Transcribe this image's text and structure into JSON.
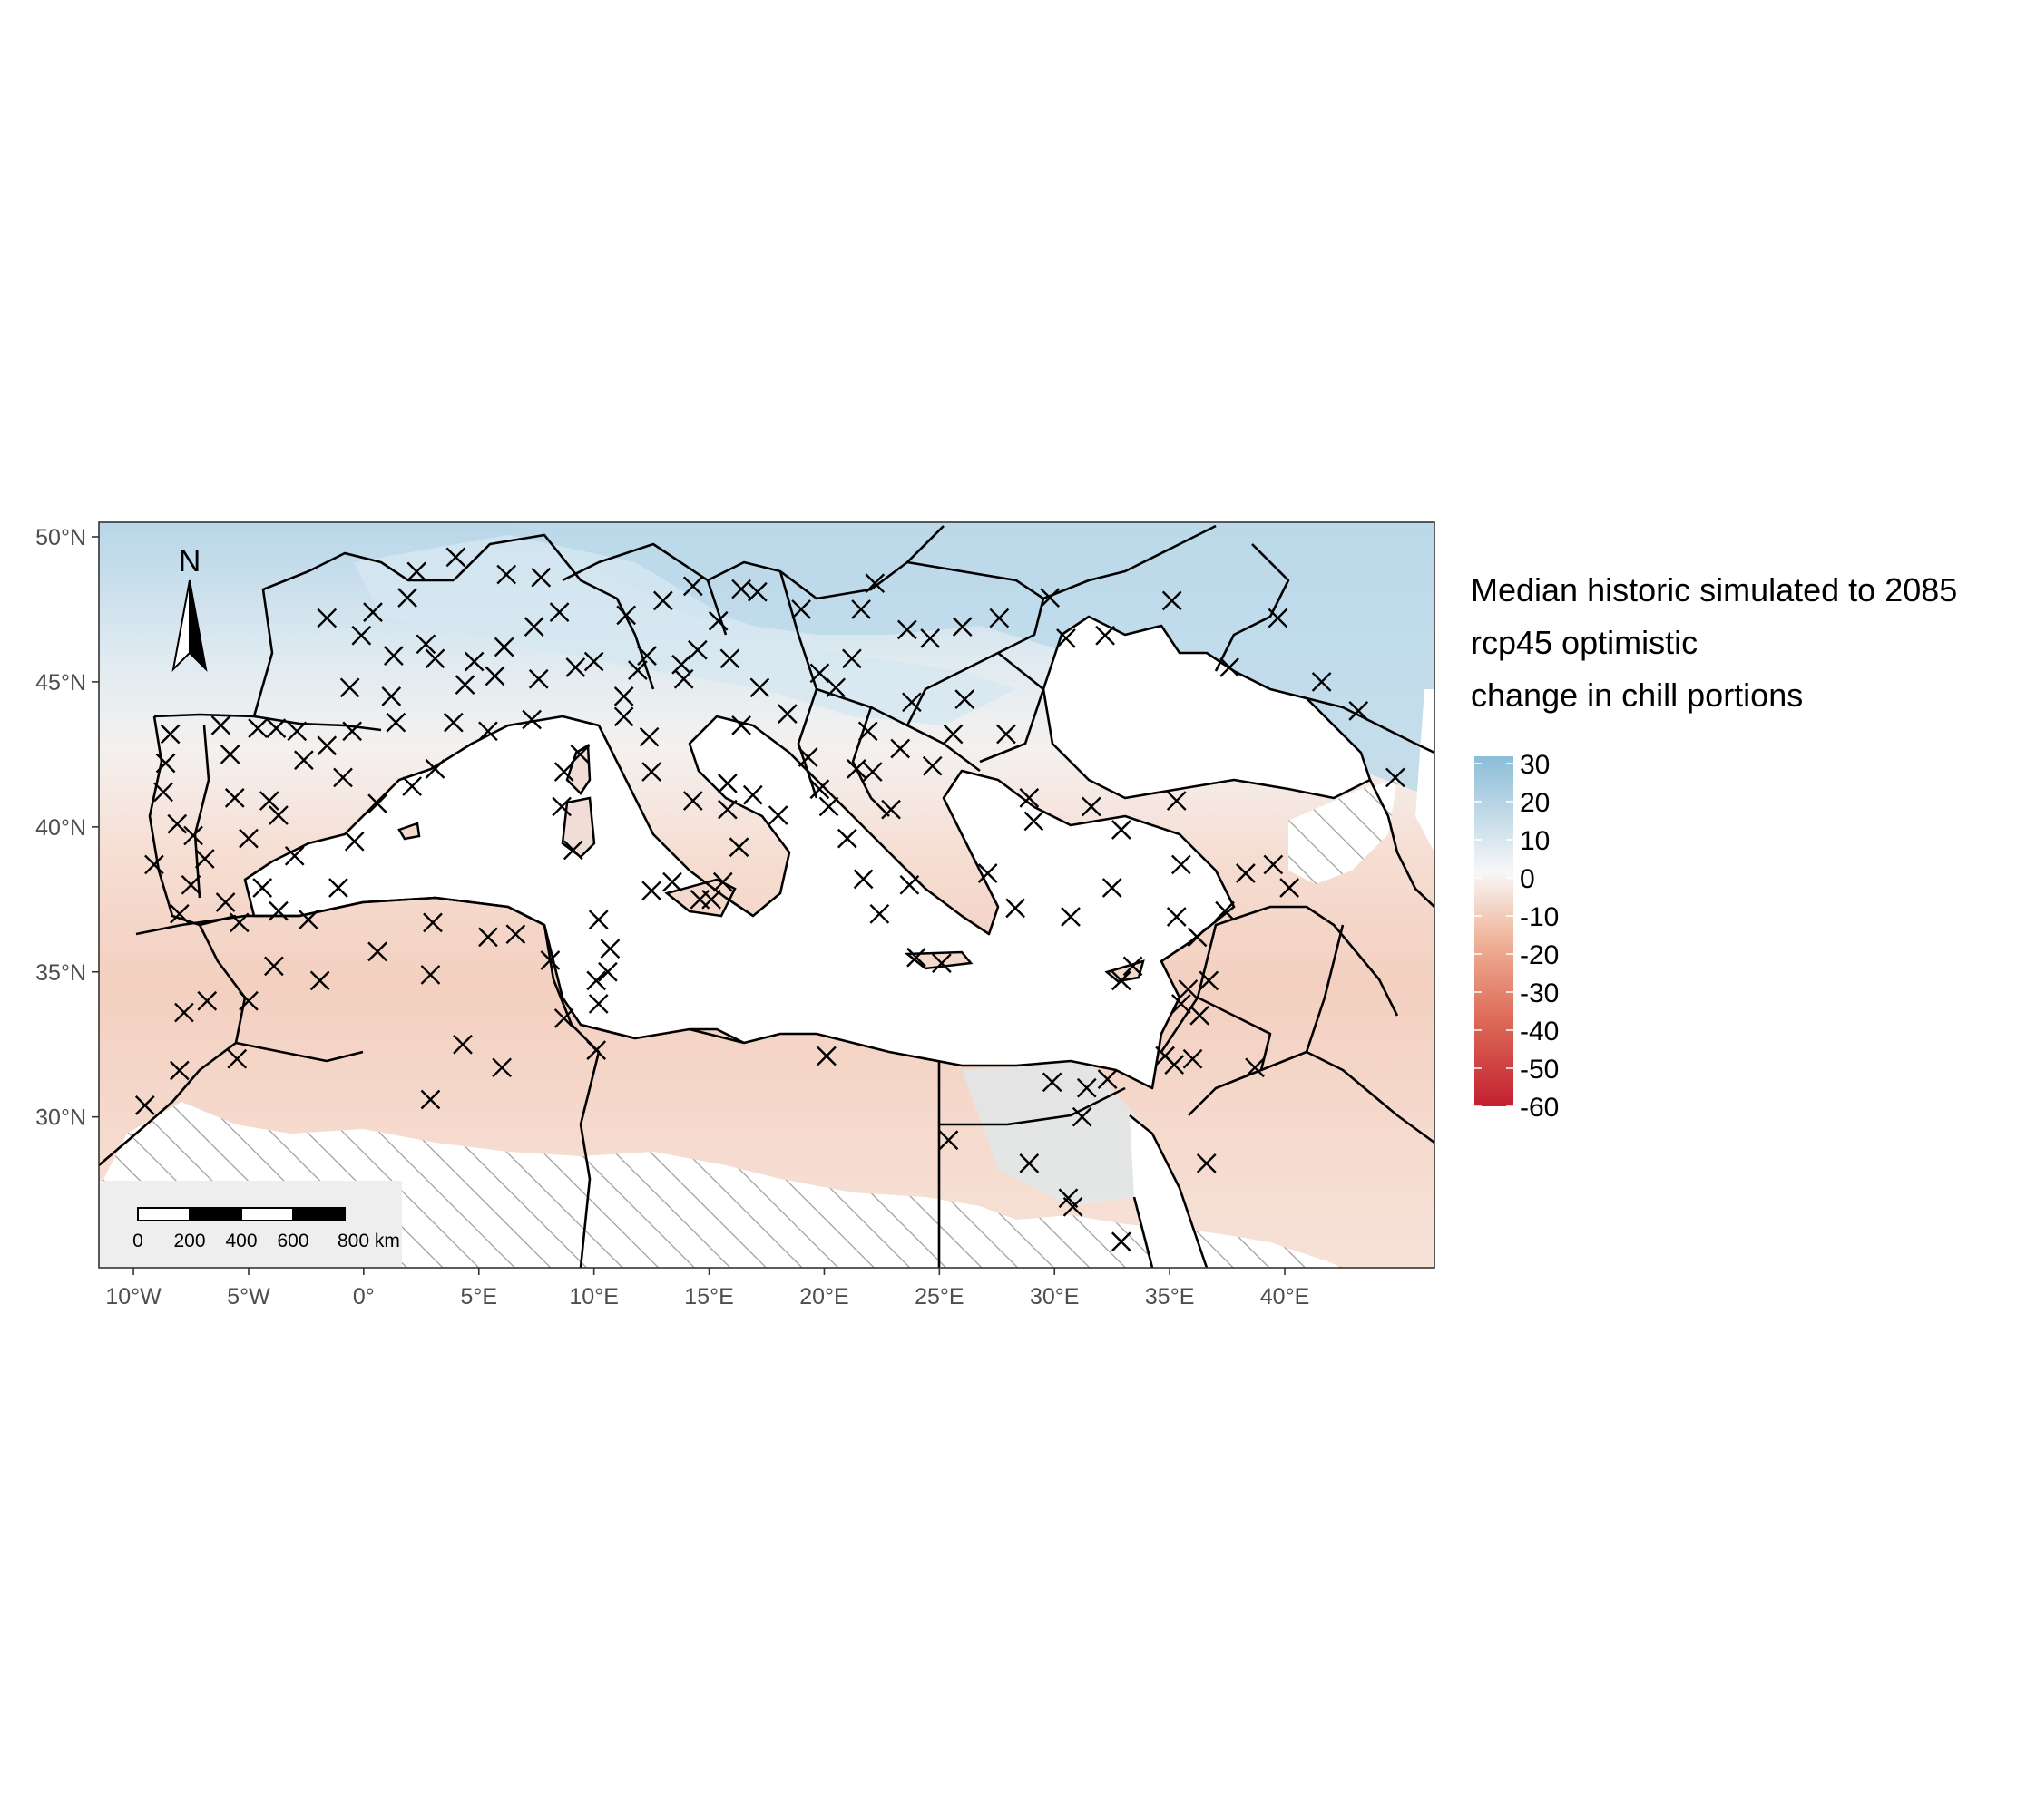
{
  "chart_data": {
    "type": "heatmap",
    "kind": "choropleth map with station markers",
    "title": "",
    "legend": {
      "title_lines": [
        "Median historic simulated to 2085",
        "rcp45 optimistic",
        "change in chill portions"
      ],
      "ticks": [
        "30",
        "20",
        "10",
        "0",
        "-10",
        "-20",
        "-30",
        "-40",
        "-50",
        "-60"
      ],
      "range": [
        -60,
        30
      ],
      "colors": {
        "max": "#8cbdd8",
        "zero": "#f7f7f7",
        "min": "#c32030"
      },
      "placement": "right"
    },
    "x_ticks": [
      {
        "lon": -10,
        "label": "10°W"
      },
      {
        "lon": -5,
        "label": "5°W"
      },
      {
        "lon": 0,
        "label": "0°"
      },
      {
        "lon": 5,
        "label": "5°E"
      },
      {
        "lon": 10,
        "label": "10°E"
      },
      {
        "lon": 15,
        "label": "15°E"
      },
      {
        "lon": 20,
        "label": "20°E"
      },
      {
        "lon": 25,
        "label": "25°E"
      },
      {
        "lon": 30,
        "label": "30°E"
      },
      {
        "lon": 35,
        "label": "35°E"
      },
      {
        "lon": 40,
        "label": "40°E"
      }
    ],
    "y_ticks": [
      {
        "lat": 50,
        "label": "50°N"
      },
      {
        "lat": 45,
        "label": "45°N"
      },
      {
        "lat": 40,
        "label": "40°N"
      },
      {
        "lat": 35,
        "label": "35°N"
      },
      {
        "lat": 30,
        "label": "30°N"
      }
    ],
    "xlim": [
      -11.5,
      46.5
    ],
    "ylim": [
      24.8,
      50.5
    ],
    "grid": false,
    "north_arrow": {
      "label": "N",
      "placement": "top-left"
    },
    "scale_bar": {
      "labels": [
        "0",
        "200",
        "400",
        "600",
        "800 km"
      ],
      "placement": "bottom-left"
    },
    "no_data_pattern": "hatched",
    "stations": [
      [
        -8.4,
        43.2
      ],
      [
        -8.6,
        42.2
      ],
      [
        -8.7,
        41.2
      ],
      [
        -8.1,
        40.1
      ],
      [
        -9.1,
        38.7
      ],
      [
        -8.0,
        37.0
      ],
      [
        -7.5,
        38.0
      ],
      [
        -6.2,
        43.5
      ],
      [
        -5.8,
        42.5
      ],
      [
        -4.6,
        43.4
      ],
      [
        -3.8,
        43.4
      ],
      [
        -2.9,
        43.3
      ],
      [
        -1.6,
        42.8
      ],
      [
        -0.9,
        41.7
      ],
      [
        -3.7,
        40.4
      ],
      [
        -4.1,
        40.9
      ],
      [
        -5.6,
        41.0
      ],
      [
        -3.0,
        39.0
      ],
      [
        -4.4,
        37.9
      ],
      [
        -6.0,
        37.4
      ],
      [
        -5.4,
        36.7
      ],
      [
        -3.7,
        37.1
      ],
      [
        -2.4,
        36.8
      ],
      [
        -1.1,
        37.9
      ],
      [
        -0.4,
        39.5
      ],
      [
        0.6,
        40.8
      ],
      [
        2.1,
        41.4
      ],
      [
        3.1,
        42.0
      ],
      [
        -6.9,
        38.9
      ],
      [
        -5.0,
        39.6
      ],
      [
        -2.6,
        42.3
      ],
      [
        -7.4,
        39.7
      ],
      [
        -7.8,
        33.6
      ],
      [
        -6.8,
        34.0
      ],
      [
        -5.0,
        34.0
      ],
      [
        -3.9,
        35.2
      ],
      [
        -1.9,
        34.7
      ],
      [
        -8.0,
        31.6
      ],
      [
        -5.5,
        32.0
      ],
      [
        -9.5,
        30.4
      ],
      [
        0.6,
        35.7
      ],
      [
        3.0,
        36.7
      ],
      [
        5.4,
        36.2
      ],
      [
        6.6,
        36.3
      ],
      [
        8.1,
        35.4
      ],
      [
        2.9,
        34.9
      ],
      [
        4.3,
        32.5
      ],
      [
        6.0,
        31.7
      ],
      [
        2.9,
        30.6
      ],
      [
        10.2,
        36.8
      ],
      [
        10.7,
        35.8
      ],
      [
        10.1,
        34.7
      ],
      [
        10.2,
        33.9
      ],
      [
        10.6,
        35.0
      ],
      [
        10.1,
        32.3
      ],
      [
        8.7,
        33.4
      ],
      [
        1.9,
        47.9
      ],
      [
        0.4,
        47.4
      ],
      [
        -1.6,
        47.2
      ],
      [
        -0.6,
        44.8
      ],
      [
        1.4,
        43.6
      ],
      [
        3.9,
        43.6
      ],
      [
        5.4,
        43.3
      ],
      [
        7.3,
        43.7
      ],
      [
        4.8,
        45.7
      ],
      [
        5.7,
        45.2
      ],
      [
        6.1,
        46.2
      ],
      [
        2.3,
        48.8
      ],
      [
        4.0,
        49.3
      ],
      [
        6.2,
        48.7
      ],
      [
        7.7,
        48.6
      ],
      [
        3.1,
        45.8
      ],
      [
        1.3,
        45.9
      ],
      [
        -0.1,
        46.6
      ],
      [
        2.7,
        46.3
      ],
      [
        -0.5,
        43.3
      ],
      [
        1.2,
        44.5
      ],
      [
        4.4,
        44.9
      ],
      [
        7.4,
        46.9
      ],
      [
        8.5,
        47.4
      ],
      [
        7.6,
        45.1
      ],
      [
        9.2,
        45.5
      ],
      [
        10.0,
        45.7
      ],
      [
        11.3,
        44.5
      ],
      [
        11.9,
        45.4
      ],
      [
        12.3,
        45.9
      ],
      [
        13.8,
        45.6
      ],
      [
        11.3,
        43.8
      ],
      [
        12.4,
        43.1
      ],
      [
        12.5,
        41.9
      ],
      [
        14.3,
        40.9
      ],
      [
        15.8,
        41.5
      ],
      [
        16.9,
        41.1
      ],
      [
        18.0,
        40.4
      ],
      [
        15.8,
        40.6
      ],
      [
        16.3,
        39.3
      ],
      [
        15.6,
        38.1
      ],
      [
        13.4,
        38.1
      ],
      [
        14.6,
        37.5
      ],
      [
        15.1,
        37.5
      ],
      [
        12.5,
        37.8
      ],
      [
        9.1,
        39.2
      ],
      [
        8.6,
        40.7
      ],
      [
        9.4,
        42.5
      ],
      [
        8.7,
        41.9
      ],
      [
        14.5,
        46.1
      ],
      [
        15.9,
        45.8
      ],
      [
        13.9,
        45.1
      ],
      [
        16.4,
        43.5
      ],
      [
        18.4,
        43.9
      ],
      [
        17.2,
        44.8
      ],
      [
        19.3,
        42.4
      ],
      [
        20.5,
        44.8
      ],
      [
        21.9,
        43.3
      ],
      [
        19.8,
        45.3
      ],
      [
        22.1,
        41.9
      ],
      [
        21.4,
        42.0
      ],
      [
        19.8,
        41.3
      ],
      [
        20.2,
        40.7
      ],
      [
        21.0,
        39.6
      ],
      [
        22.9,
        40.6
      ],
      [
        23.7,
        38.0
      ],
      [
        21.7,
        38.2
      ],
      [
        22.4,
        37.0
      ],
      [
        25.1,
        35.3
      ],
      [
        24.0,
        35.5
      ],
      [
        23.3,
        42.7
      ],
      [
        24.7,
        42.1
      ],
      [
        25.6,
        43.2
      ],
      [
        27.9,
        43.2
      ],
      [
        26.1,
        44.4
      ],
      [
        23.8,
        44.3
      ],
      [
        27.6,
        47.2
      ],
      [
        24.6,
        46.5
      ],
      [
        23.6,
        46.8
      ],
      [
        21.2,
        45.8
      ],
      [
        19.0,
        47.5
      ],
      [
        21.6,
        47.5
      ],
      [
        17.1,
        48.1
      ],
      [
        16.4,
        48.2
      ],
      [
        14.3,
        48.3
      ],
      [
        15.4,
        47.1
      ],
      [
        13.0,
        47.8
      ],
      [
        11.4,
        47.3
      ],
      [
        28.9,
        41.0
      ],
      [
        29.1,
        40.2
      ],
      [
        27.1,
        38.4
      ],
      [
        28.3,
        37.2
      ],
      [
        30.7,
        36.9
      ],
      [
        32.5,
        37.9
      ],
      [
        32.9,
        39.9
      ],
      [
        35.5,
        38.7
      ],
      [
        35.3,
        36.9
      ],
      [
        36.2,
        36.2
      ],
      [
        37.4,
        37.1
      ],
      [
        39.5,
        38.7
      ],
      [
        40.2,
        37.9
      ],
      [
        38.3,
        38.4
      ],
      [
        35.3,
        40.9
      ],
      [
        31.6,
        40.7
      ],
      [
        33.4,
        35.2
      ],
      [
        32.9,
        34.7
      ],
      [
        35.5,
        33.9
      ],
      [
        36.3,
        33.5
      ],
      [
        35.8,
        34.4
      ],
      [
        35.2,
        31.8
      ],
      [
        34.8,
        32.1
      ],
      [
        36.0,
        32.0
      ],
      [
        36.7,
        34.7
      ],
      [
        38.7,
        31.7
      ],
      [
        31.2,
        30.0
      ],
      [
        29.9,
        31.2
      ],
      [
        31.4,
        31.0
      ],
      [
        32.3,
        31.3
      ],
      [
        32.9,
        25.7
      ],
      [
        30.6,
        27.2
      ],
      [
        28.9,
        28.4
      ],
      [
        30.8,
        26.9
      ],
      [
        36.6,
        28.4
      ],
      [
        25.4,
        29.2
      ],
      [
        20.1,
        32.1
      ],
      [
        44.8,
        41.7
      ],
      [
        41.6,
        45.0
      ],
      [
        39.7,
        47.2
      ],
      [
        43.2,
        44.0
      ],
      [
        37.6,
        45.5
      ],
      [
        35.1,
        47.8
      ],
      [
        30.5,
        46.5
      ],
      [
        32.2,
        46.6
      ],
      [
        29.8,
        47.9
      ],
      [
        26.0,
        46.9
      ],
      [
        22.2,
        48.4
      ]
    ]
  }
}
